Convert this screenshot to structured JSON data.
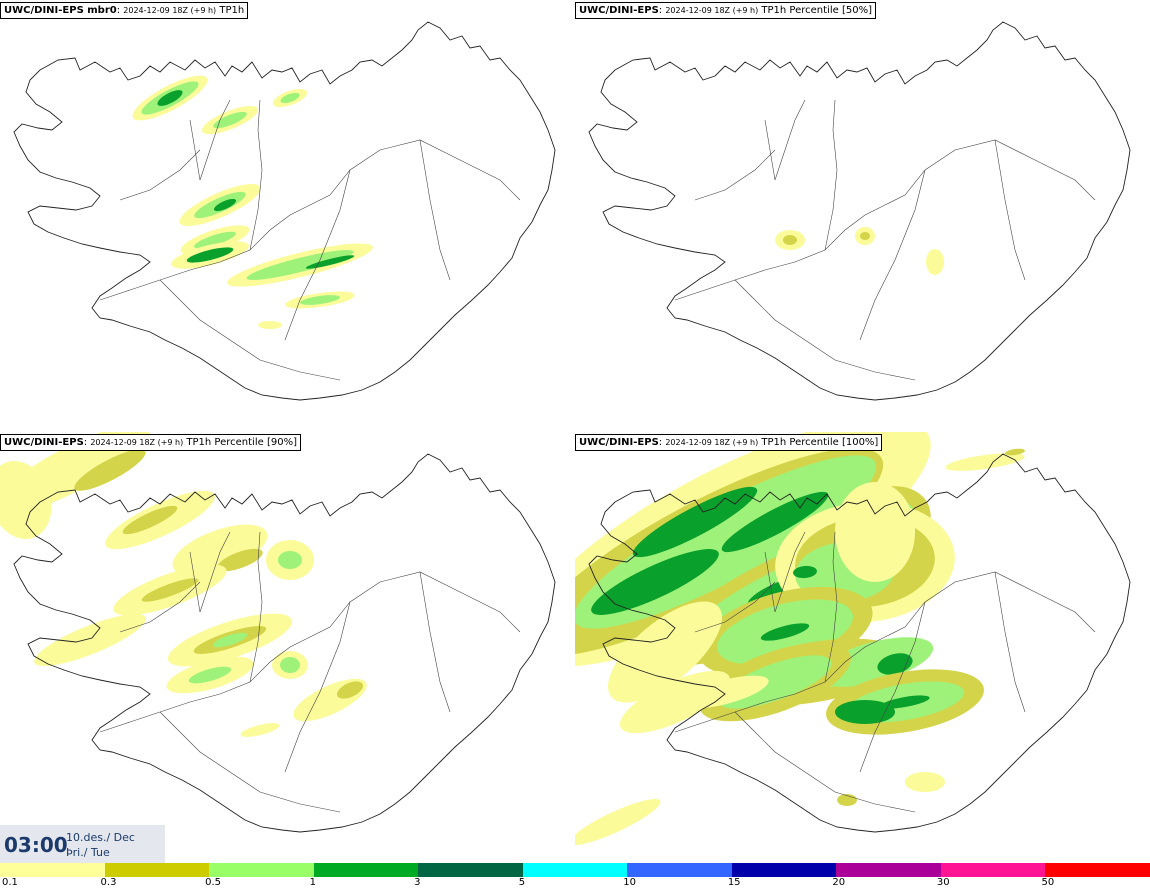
{
  "panels": [
    {
      "id": "tl",
      "model": "UWC/DINI-EPS mbr0",
      "run": "2024-12-09 18Z (+9 h)",
      "field": "TP1h"
    },
    {
      "id": "tr",
      "model": "UWC/DINI-EPS",
      "run": "2024-12-09 18Z (+9 h)",
      "field": "TP1h Percentile [50%]"
    },
    {
      "id": "bl",
      "model": "UWC/DINI-EPS",
      "run": "2024-12-09 18Z (+9 h)",
      "field": "TP1h Percentile [90%]"
    },
    {
      "id": "br",
      "model": "UWC/DINI-EPS",
      "run": "2024-12-09 18Z (+9 h)",
      "field": "TP1h Percentile [100%]"
    }
  ],
  "timebox": {
    "time": "03:00",
    "date_line1": "10.des./ Dec",
    "date_line2": "Þri./ Tue"
  },
  "colorbar": {
    "colors": [
      "#ffff99",
      "#cccc00",
      "#99ff66",
      "#00aa22",
      "#006644",
      "#00ffff",
      "#3366ff",
      "#0000aa",
      "#aa0099",
      "#ff1493",
      "#ff0000"
    ],
    "ticks": [
      "0.1",
      "0.3",
      "0.5",
      "1",
      "3",
      "5",
      "10",
      "15",
      "20",
      "30",
      "50"
    ]
  },
  "legend_colors": {
    "light_yellow": "#fbfb9a",
    "olive": "#d4d44a",
    "light_green": "#9ef27a",
    "green": "#0aa02c"
  }
}
